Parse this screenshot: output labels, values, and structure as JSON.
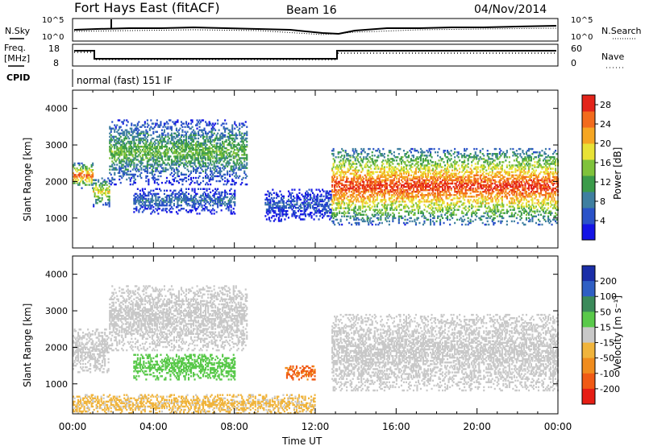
{
  "header": {
    "station": "Fort Hays East (fitACF)",
    "beam": "Beam 16",
    "date": "04/Nov/2014"
  },
  "strips": {
    "noise": {
      "left_label": "N.Sky",
      "left_ticks": [
        "10^5",
        "10^0"
      ],
      "right_ticks": [
        "10^5",
        "10^0"
      ],
      "right_label": "N.Search"
    },
    "freq": {
      "left_label_1": "Freq.",
      "left_label_2": "[MHz]",
      "left_ticks": [
        "18",
        "8"
      ],
      "right_ticks": [
        "60",
        "0"
      ],
      "right_label": "Nave"
    },
    "cpid": {
      "label": "CPID",
      "text": "normal (fast) 151 IF"
    }
  },
  "chart_data": [
    {
      "type": "heatmap",
      "name": "power",
      "ylabel": "Slant Range [km]",
      "xlabel": "Time UT",
      "xlim": [
        "00:00",
        "24:00"
      ],
      "ylim": [
        180,
        4500
      ],
      "yticks": [
        "1000",
        "2000",
        "3000",
        "4000"
      ],
      "colorbar": {
        "label": "Power [dB]",
        "ticks": [
          "4",
          "8",
          "12",
          "16",
          "20",
          "24",
          "28"
        ],
        "range": [
          0,
          30
        ],
        "colors": [
          "#1414e6",
          "#2a52c8",
          "#3f7fa0",
          "#3b9b4a",
          "#7fc23b",
          "#e8e236",
          "#f5a623",
          "#f26b1d",
          "#e3241a"
        ]
      },
      "bands": [
        {
          "t": [
            0.0,
            1.0
          ],
          "range": [
            1800,
            2500
          ],
          "peak_db": 26
        },
        {
          "t": [
            1.0,
            1.8
          ],
          "range": [
            1300,
            2100
          ],
          "peak_db": 20
        },
        {
          "t": [
            1.8,
            8.6
          ],
          "range": [
            1900,
            3700
          ],
          "peak_db": 14
        },
        {
          "t": [
            3.0,
            8.0
          ],
          "range": [
            1100,
            1800
          ],
          "peak_db": 8
        },
        {
          "t": [
            9.5,
            12.8
          ],
          "range": [
            900,
            1800
          ],
          "peak_db": 6
        },
        {
          "t": [
            12.8,
            24.0
          ],
          "range": [
            800,
            2900
          ],
          "peak_db": 28
        }
      ]
    },
    {
      "type": "heatmap",
      "name": "velocity",
      "ylabel": "Slant Range [km]",
      "xlabel": "Time UT",
      "xlim": [
        "00:00",
        "24:00"
      ],
      "ylim": [
        180,
        4500
      ],
      "yticks": [
        "1000",
        "2000",
        "3000",
        "4000"
      ],
      "xticks": [
        "00:00",
        "04:00",
        "08:00",
        "12:00",
        "16:00",
        "20:00",
        "00:00"
      ],
      "colorbar": {
        "label": "Velocity [m s⁻¹]",
        "ticks": [
          "200",
          "100",
          "50",
          "15",
          "-15",
          "-50",
          "-100",
          "-200"
        ],
        "range": [
          -250,
          250
        ],
        "colors": [
          "#1a2ea8",
          "#2f5fc4",
          "#3b8a5a",
          "#59c94a",
          "#c8c8c8",
          "#f0b43c",
          "#f08c1e",
          "#f05a14",
          "#e61e14"
        ]
      },
      "bands": [
        {
          "t": [
            0.0,
            1.8
          ],
          "range": [
            1300,
            2500
          ],
          "vel": 0
        },
        {
          "t": [
            1.8,
            8.6
          ],
          "range": [
            1900,
            3700
          ],
          "vel": 0
        },
        {
          "t": [
            3.0,
            8.0
          ],
          "range": [
            1100,
            1800
          ],
          "vel": 50
        },
        {
          "t": [
            10.5,
            12.0
          ],
          "range": [
            1100,
            1500
          ],
          "vel": -150
        },
        {
          "t": [
            12.8,
            24.0
          ],
          "range": [
            800,
            2900
          ],
          "vel": 0
        },
        {
          "t": [
            0.0,
            12.0
          ],
          "range": [
            180,
            700
          ],
          "vel": -40
        }
      ]
    }
  ]
}
